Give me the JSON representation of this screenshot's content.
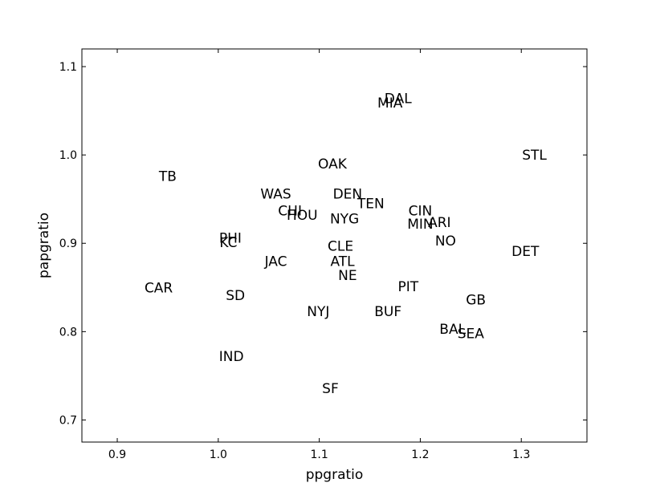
{
  "chart_data": {
    "type": "scatter",
    "title": "",
    "xlabel": "ppgratio",
    "ylabel": "papgratio",
    "xlim": [
      0.865,
      1.365
    ],
    "ylim": [
      0.675,
      1.12
    ],
    "xticks": [
      0.9,
      1.0,
      1.1,
      1.2,
      1.3
    ],
    "yticks": [
      0.7,
      0.8,
      0.9,
      1.0,
      1.1
    ],
    "xtick_labels": [
      "0.9",
      "1.0",
      "1.1",
      "1.2",
      "1.3"
    ],
    "ytick_labels": [
      "0.7",
      "0.8",
      "0.9",
      "1.0",
      "1.1"
    ],
    "grid": false,
    "marker": "text-label",
    "points": [
      {
        "label": "DAL",
        "x": 1.178,
        "y": 1.064
      },
      {
        "label": "MIA",
        "x": 1.17,
        "y": 1.059
      },
      {
        "label": "STL",
        "x": 1.313,
        "y": 1.0
      },
      {
        "label": "OAK",
        "x": 1.113,
        "y": 0.99
      },
      {
        "label": "TB",
        "x": 0.95,
        "y": 0.976
      },
      {
        "label": "WAS",
        "x": 1.057,
        "y": 0.956
      },
      {
        "label": "DEN",
        "x": 1.128,
        "y": 0.956
      },
      {
        "label": "TEN",
        "x": 1.151,
        "y": 0.945
      },
      {
        "label": "CHI",
        "x": 1.071,
        "y": 0.937
      },
      {
        "label": "CIN",
        "x": 1.2,
        "y": 0.937
      },
      {
        "label": "HOU",
        "x": 1.083,
        "y": 0.932
      },
      {
        "label": "NYG",
        "x": 1.125,
        "y": 0.928
      },
      {
        "label": "ARI",
        "x": 1.219,
        "y": 0.924
      },
      {
        "label": "MIN",
        "x": 1.2,
        "y": 0.922
      },
      {
        "label": "PHI",
        "x": 1.012,
        "y": 0.906
      },
      {
        "label": "KC",
        "x": 1.01,
        "y": 0.901
      },
      {
        "label": "NO",
        "x": 1.225,
        "y": 0.903
      },
      {
        "label": "CLE",
        "x": 1.121,
        "y": 0.897
      },
      {
        "label": "DET",
        "x": 1.304,
        "y": 0.891
      },
      {
        "label": "JAC",
        "x": 1.057,
        "y": 0.88
      },
      {
        "label": "ATL",
        "x": 1.123,
        "y": 0.88
      },
      {
        "label": "NE",
        "x": 1.128,
        "y": 0.864
      },
      {
        "label": "CAR",
        "x": 0.941,
        "y": 0.85
      },
      {
        "label": "PIT",
        "x": 1.188,
        "y": 0.851
      },
      {
        "label": "SD",
        "x": 1.017,
        "y": 0.841
      },
      {
        "label": "GB",
        "x": 1.255,
        "y": 0.836
      },
      {
        "label": "NYJ",
        "x": 1.099,
        "y": 0.823
      },
      {
        "label": "BUF",
        "x": 1.168,
        "y": 0.823
      },
      {
        "label": "BAL",
        "x": 1.232,
        "y": 0.803
      },
      {
        "label": "SEA",
        "x": 1.25,
        "y": 0.798
      },
      {
        "label": "IND",
        "x": 1.013,
        "y": 0.772
      },
      {
        "label": "SF",
        "x": 1.111,
        "y": 0.736
      }
    ]
  }
}
